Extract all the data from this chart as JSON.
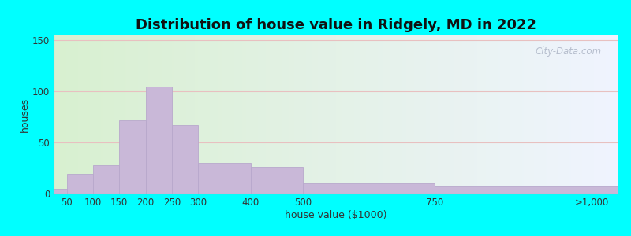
{
  "title": "Distribution of house value in Ridgely, MD in 2022",
  "xlabel": "house value ($1000)",
  "ylabel": "houses",
  "tick_positions": [
    50,
    100,
    150,
    200,
    250,
    300,
    400,
    500,
    750,
    1050
  ],
  "tick_labels": [
    "50",
    "100",
    "150",
    "200",
    "250",
    "300",
    "400",
    "500",
    "750",
    ">1,000"
  ],
  "bar_lefts": [
    25,
    50,
    100,
    150,
    200,
    250,
    300,
    400,
    500,
    750
  ],
  "bar_widths": [
    50,
    50,
    50,
    50,
    50,
    50,
    100,
    100,
    250,
    350
  ],
  "bar_values": [
    5,
    19,
    28,
    72,
    105,
    67,
    30,
    26,
    10,
    7
  ],
  "bar_color": "#c9b8d8",
  "bar_edge_color": "#b8a8cc",
  "yticks": [
    0,
    50,
    100,
    150
  ],
  "ylim": [
    0,
    155
  ],
  "xlim": [
    25,
    1100
  ],
  "background_color_left": "#d8f0d0",
  "background_color_right": "#f0f4ff",
  "outer_color": "#00ffff",
  "title_fontsize": 13,
  "axis_fontsize": 9,
  "tick_fontsize": 8.5,
  "watermark": "City-Data.com",
  "grid_color": "#e8c0c0",
  "spine_color": "#aaaaaa"
}
